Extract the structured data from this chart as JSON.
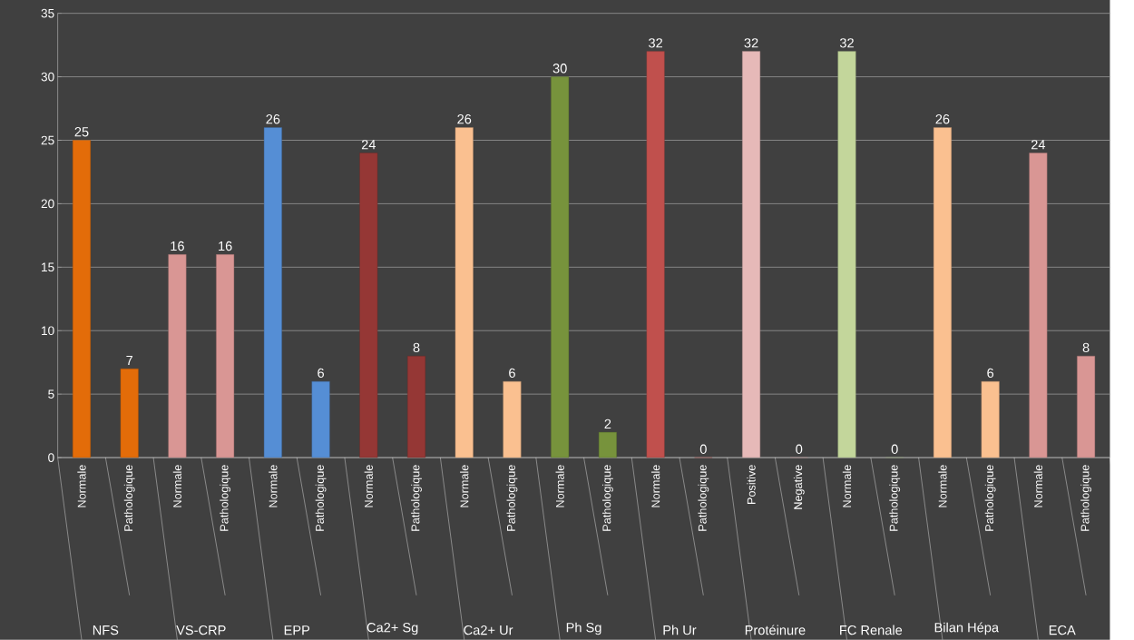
{
  "chart_data": {
    "type": "bar",
    "categories": [
      "Normale",
      "Pathologique",
      "Normale",
      "Pathologique",
      "Normale",
      "Pathologique",
      "Normale",
      "Pathologique",
      "Normale",
      "Pathologique",
      "Normale",
      "Pathologique",
      "Normale",
      "Pathologique",
      "Positive",
      "Negative",
      "Normale",
      "Pathologique",
      "Normale",
      "Pathologique",
      "Normale",
      "Pathologique"
    ],
    "values": [
      25,
      7,
      16,
      16,
      26,
      6,
      24,
      8,
      26,
      6,
      30,
      2,
      32,
      0,
      32,
      0,
      32,
      0,
      26,
      6,
      24,
      8
    ],
    "colors": [
      "#e36c09",
      "#e36c09",
      "#d99694",
      "#d99694",
      "#558ed5",
      "#558ed5",
      "#953735",
      "#953735",
      "#fac090",
      "#fac090",
      "#77933c",
      "#77933c",
      "#c0504d",
      "#c0504d",
      "#e6b9b8",
      "#e6b9b8",
      "#c3d69b",
      "#c3d69b",
      "#fac090",
      "#fac090",
      "#d99694",
      "#d99694"
    ],
    "annotations": [
      "NFS",
      "VS-CRP",
      "EPP",
      "Ca2+ Sg",
      "Ca2+ Ur",
      "Ph Sg",
      "Ph Ur",
      "Protéinure",
      "FC Renale",
      "Bilan Hépa",
      "ECA"
    ],
    "ylim": [
      0,
      35
    ],
    "yticks": [
      0,
      5,
      10,
      15,
      20,
      25,
      30,
      35
    ],
    "grid": "y",
    "data_labels": true
  }
}
